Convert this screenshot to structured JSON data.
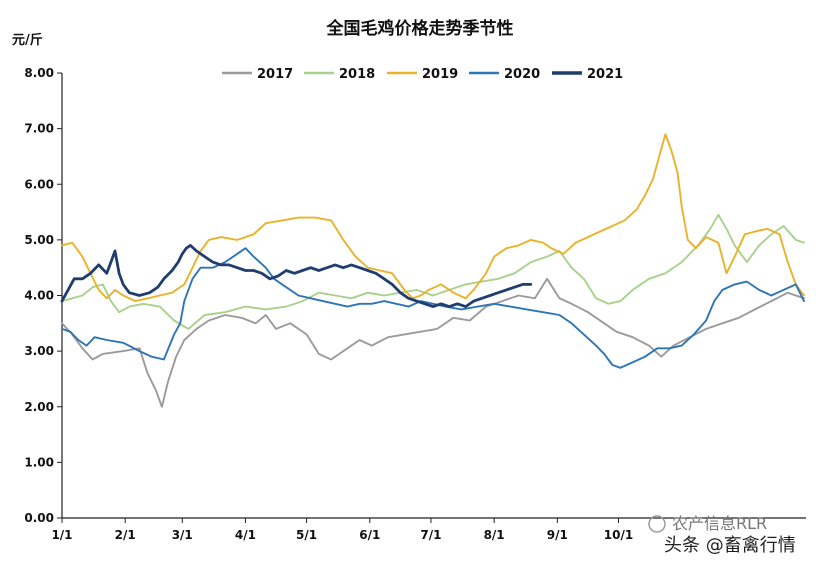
{
  "chart_data": {
    "type": "line",
    "title": "全国毛鸡价格走势季节性",
    "ylabel": "元/斤",
    "ylim": [
      0,
      8
    ],
    "yticks": [
      "0.00",
      "1.00",
      "2.00",
      "3.00",
      "4.00",
      "5.00",
      "6.00",
      "7.00",
      "8.00"
    ],
    "x_tick_labels": [
      "1/1",
      "2/1",
      "3/1",
      "4/1",
      "5/1",
      "6/1",
      "7/1",
      "8/1",
      "9/1",
      "10/1"
    ],
    "x_tick_days": [
      0,
      31,
      59,
      90,
      120,
      151,
      181,
      212,
      243,
      273
    ],
    "legend_position": "top",
    "grid": false,
    "series": [
      {
        "name": "2017",
        "color": "#9b9b9b",
        "points": [
          [
            0,
            3.5
          ],
          [
            5,
            3.3
          ],
          [
            10,
            3.05
          ],
          [
            15,
            2.85
          ],
          [
            20,
            2.95
          ],
          [
            30,
            3.0
          ],
          [
            38,
            3.05
          ],
          [
            42,
            2.6
          ],
          [
            46,
            2.3
          ],
          [
            49,
            2.0
          ],
          [
            52,
            2.45
          ],
          [
            56,
            2.9
          ],
          [
            60,
            3.2
          ],
          [
            66,
            3.4
          ],
          [
            72,
            3.55
          ],
          [
            80,
            3.65
          ],
          [
            88,
            3.6
          ],
          [
            95,
            3.5
          ],
          [
            100,
            3.65
          ],
          [
            105,
            3.4
          ],
          [
            112,
            3.5
          ],
          [
            120,
            3.3
          ],
          [
            126,
            2.95
          ],
          [
            132,
            2.85
          ],
          [
            140,
            3.05
          ],
          [
            146,
            3.2
          ],
          [
            152,
            3.1
          ],
          [
            160,
            3.25
          ],
          [
            168,
            3.3
          ],
          [
            176,
            3.35
          ],
          [
            184,
            3.4
          ],
          [
            192,
            3.6
          ],
          [
            200,
            3.55
          ],
          [
            208,
            3.8
          ],
          [
            216,
            3.9
          ],
          [
            224,
            4.0
          ],
          [
            232,
            3.95
          ],
          [
            238,
            4.3
          ],
          [
            244,
            3.95
          ],
          [
            250,
            3.85
          ],
          [
            258,
            3.7
          ],
          [
            266,
            3.5
          ],
          [
            272,
            3.35
          ],
          [
            280,
            3.25
          ],
          [
            288,
            3.1
          ],
          [
            294,
            2.9
          ],
          [
            300,
            3.1
          ],
          [
            308,
            3.25
          ],
          [
            316,
            3.4
          ],
          [
            324,
            3.5
          ],
          [
            332,
            3.6
          ],
          [
            340,
            3.75
          ],
          [
            348,
            3.9
          ],
          [
            356,
            4.05
          ],
          [
            364,
            3.95
          ]
        ]
      },
      {
        "name": "2018",
        "color": "#a9d18e",
        "points": [
          [
            0,
            3.9
          ],
          [
            5,
            3.95
          ],
          [
            10,
            4.0
          ],
          [
            15,
            4.15
          ],
          [
            20,
            4.2
          ],
          [
            24,
            3.9
          ],
          [
            28,
            3.7
          ],
          [
            33,
            3.8
          ],
          [
            40,
            3.85
          ],
          [
            48,
            3.8
          ],
          [
            55,
            3.55
          ],
          [
            62,
            3.4
          ],
          [
            70,
            3.65
          ],
          [
            80,
            3.7
          ],
          [
            90,
            3.8
          ],
          [
            100,
            3.75
          ],
          [
            110,
            3.8
          ],
          [
            118,
            3.9
          ],
          [
            126,
            4.05
          ],
          [
            134,
            4.0
          ],
          [
            142,
            3.95
          ],
          [
            150,
            4.05
          ],
          [
            158,
            4.0
          ],
          [
            166,
            4.05
          ],
          [
            174,
            4.1
          ],
          [
            182,
            4.0
          ],
          [
            190,
            4.1
          ],
          [
            198,
            4.2
          ],
          [
            206,
            4.25
          ],
          [
            214,
            4.3
          ],
          [
            222,
            4.4
          ],
          [
            230,
            4.6
          ],
          [
            238,
            4.7
          ],
          [
            244,
            4.8
          ],
          [
            250,
            4.5
          ],
          [
            256,
            4.3
          ],
          [
            262,
            3.95
          ],
          [
            268,
            3.85
          ],
          [
            274,
            3.9
          ],
          [
            280,
            4.1
          ],
          [
            288,
            4.3
          ],
          [
            296,
            4.4
          ],
          [
            304,
            4.6
          ],
          [
            312,
            4.9
          ],
          [
            318,
            5.2
          ],
          [
            322,
            5.45
          ],
          [
            326,
            5.2
          ],
          [
            330,
            4.9
          ],
          [
            336,
            4.6
          ],
          [
            342,
            4.9
          ],
          [
            348,
            5.1
          ],
          [
            354,
            5.25
          ],
          [
            360,
            5.0
          ],
          [
            364,
            4.95
          ]
        ]
      },
      {
        "name": "2019",
        "color": "#e9b22a",
        "points": [
          [
            0,
            4.9
          ],
          [
            5,
            4.95
          ],
          [
            10,
            4.7
          ],
          [
            14,
            4.4
          ],
          [
            18,
            4.1
          ],
          [
            22,
            3.95
          ],
          [
            26,
            4.1
          ],
          [
            30,
            4.0
          ],
          [
            36,
            3.9
          ],
          [
            42,
            3.95
          ],
          [
            48,
            4.0
          ],
          [
            54,
            4.05
          ],
          [
            60,
            4.2
          ],
          [
            64,
            4.5
          ],
          [
            68,
            4.8
          ],
          [
            72,
            5.0
          ],
          [
            78,
            5.05
          ],
          [
            86,
            5.0
          ],
          [
            94,
            5.1
          ],
          [
            100,
            5.3
          ],
          [
            108,
            5.35
          ],
          [
            116,
            5.4
          ],
          [
            124,
            5.4
          ],
          [
            132,
            5.35
          ],
          [
            138,
            5.0
          ],
          [
            144,
            4.7
          ],
          [
            150,
            4.5
          ],
          [
            156,
            4.45
          ],
          [
            162,
            4.4
          ],
          [
            168,
            4.1
          ],
          [
            172,
            3.95
          ],
          [
            176,
            4.0
          ],
          [
            180,
            4.1
          ],
          [
            186,
            4.2
          ],
          [
            192,
            4.05
          ],
          [
            198,
            3.95
          ],
          [
            202,
            4.1
          ],
          [
            208,
            4.4
          ],
          [
            212,
            4.7
          ],
          [
            218,
            4.85
          ],
          [
            224,
            4.9
          ],
          [
            230,
            5.0
          ],
          [
            236,
            4.95
          ],
          [
            240,
            4.85
          ],
          [
            246,
            4.75
          ],
          [
            252,
            4.95
          ],
          [
            258,
            5.05
          ],
          [
            264,
            5.15
          ],
          [
            270,
            5.25
          ],
          [
            276,
            5.35
          ],
          [
            282,
            5.55
          ],
          [
            286,
            5.8
          ],
          [
            290,
            6.1
          ],
          [
            293,
            6.5
          ],
          [
            296,
            6.9
          ],
          [
            299,
            6.6
          ],
          [
            302,
            6.2
          ],
          [
            304,
            5.6
          ],
          [
            307,
            5.0
          ],
          [
            311,
            4.85
          ],
          [
            316,
            5.05
          ],
          [
            322,
            4.95
          ],
          [
            326,
            4.4
          ],
          [
            330,
            4.7
          ],
          [
            335,
            5.1
          ],
          [
            340,
            5.15
          ],
          [
            346,
            5.2
          ],
          [
            352,
            5.1
          ],
          [
            356,
            4.6
          ],
          [
            360,
            4.2
          ],
          [
            364,
            4.0
          ]
        ]
      },
      {
        "name": "2020",
        "color": "#2e75b6",
        "points": [
          [
            0,
            3.4
          ],
          [
            4,
            3.35
          ],
          [
            8,
            3.2
          ],
          [
            12,
            3.1
          ],
          [
            16,
            3.25
          ],
          [
            22,
            3.2
          ],
          [
            30,
            3.15
          ],
          [
            38,
            3.0
          ],
          [
            44,
            2.9
          ],
          [
            50,
            2.85
          ],
          [
            55,
            3.3
          ],
          [
            58,
            3.5
          ],
          [
            60,
            3.9
          ],
          [
            64,
            4.3
          ],
          [
            68,
            4.5
          ],
          [
            74,
            4.5
          ],
          [
            80,
            4.6
          ],
          [
            86,
            4.75
          ],
          [
            90,
            4.85
          ],
          [
            94,
            4.7
          ],
          [
            100,
            4.5
          ],
          [
            104,
            4.3
          ],
          [
            110,
            4.15
          ],
          [
            116,
            4.0
          ],
          [
            122,
            3.95
          ],
          [
            128,
            3.9
          ],
          [
            134,
            3.85
          ],
          [
            140,
            3.8
          ],
          [
            146,
            3.85
          ],
          [
            152,
            3.85
          ],
          [
            158,
            3.9
          ],
          [
            164,
            3.85
          ],
          [
            170,
            3.8
          ],
          [
            176,
            3.9
          ],
          [
            182,
            3.85
          ],
          [
            188,
            3.8
          ],
          [
            196,
            3.75
          ],
          [
            204,
            3.8
          ],
          [
            212,
            3.85
          ],
          [
            220,
            3.8
          ],
          [
            228,
            3.75
          ],
          [
            236,
            3.7
          ],
          [
            244,
            3.65
          ],
          [
            250,
            3.5
          ],
          [
            256,
            3.3
          ],
          [
            262,
            3.1
          ],
          [
            266,
            2.95
          ],
          [
            270,
            2.75
          ],
          [
            274,
            2.7
          ],
          [
            280,
            2.8
          ],
          [
            286,
            2.9
          ],
          [
            292,
            3.05
          ],
          [
            298,
            3.05
          ],
          [
            304,
            3.1
          ],
          [
            310,
            3.3
          ],
          [
            316,
            3.55
          ],
          [
            320,
            3.9
          ],
          [
            324,
            4.1
          ],
          [
            330,
            4.2
          ],
          [
            336,
            4.25
          ],
          [
            342,
            4.1
          ],
          [
            348,
            4.0
          ],
          [
            354,
            4.1
          ],
          [
            360,
            4.2
          ],
          [
            364,
            3.9
          ]
        ]
      },
      {
        "name": "2021",
        "color": "#1f3d6e",
        "points": [
          [
            0,
            3.9
          ],
          [
            3,
            4.1
          ],
          [
            6,
            4.3
          ],
          [
            10,
            4.3
          ],
          [
            14,
            4.4
          ],
          [
            18,
            4.55
          ],
          [
            22,
            4.4
          ],
          [
            26,
            4.8
          ],
          [
            28,
            4.4
          ],
          [
            30,
            4.2
          ],
          [
            33,
            4.05
          ],
          [
            38,
            4.0
          ],
          [
            43,
            4.05
          ],
          [
            47,
            4.15
          ],
          [
            50,
            4.3
          ],
          [
            54,
            4.45
          ],
          [
            57,
            4.6
          ],
          [
            59,
            4.75
          ],
          [
            61,
            4.85
          ],
          [
            63,
            4.9
          ],
          [
            66,
            4.8
          ],
          [
            70,
            4.7
          ],
          [
            74,
            4.6
          ],
          [
            78,
            4.55
          ],
          [
            82,
            4.55
          ],
          [
            86,
            4.5
          ],
          [
            90,
            4.45
          ],
          [
            94,
            4.45
          ],
          [
            98,
            4.4
          ],
          [
            102,
            4.3
          ],
          [
            106,
            4.35
          ],
          [
            110,
            4.45
          ],
          [
            114,
            4.4
          ],
          [
            118,
            4.45
          ],
          [
            122,
            4.5
          ],
          [
            126,
            4.45
          ],
          [
            130,
            4.5
          ],
          [
            134,
            4.55
          ],
          [
            138,
            4.5
          ],
          [
            142,
            4.55
          ],
          [
            146,
            4.5
          ],
          [
            150,
            4.45
          ],
          [
            154,
            4.4
          ],
          [
            158,
            4.3
          ],
          [
            162,
            4.2
          ],
          [
            166,
            4.05
          ],
          [
            170,
            3.95
          ],
          [
            174,
            3.9
          ],
          [
            178,
            3.85
          ],
          [
            182,
            3.8
          ],
          [
            186,
            3.85
          ],
          [
            190,
            3.8
          ],
          [
            194,
            3.85
          ],
          [
            198,
            3.8
          ],
          [
            202,
            3.9
          ],
          [
            206,
            3.95
          ],
          [
            210,
            4.0
          ],
          [
            214,
            4.05
          ],
          [
            218,
            4.1
          ],
          [
            222,
            4.15
          ],
          [
            226,
            4.2
          ],
          [
            230,
            4.2
          ]
        ]
      }
    ]
  },
  "watermark": {
    "line1": "农产信息RLR",
    "line2": "头条 @畜禽行情"
  }
}
